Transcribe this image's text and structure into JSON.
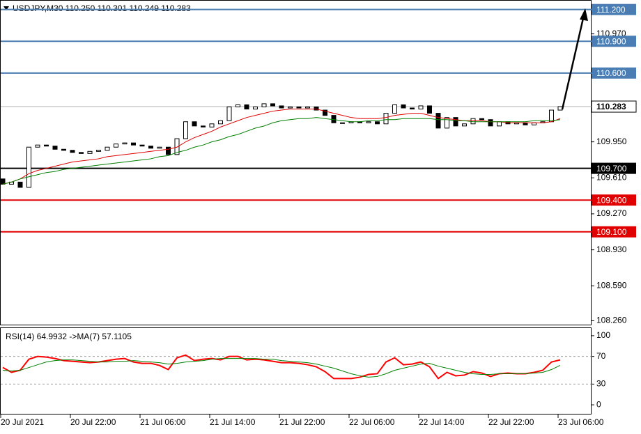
{
  "chart_data": [
    {
      "type": "candlestick",
      "title": "USDJPY,M30  110.250 110.301 110.249 110.283",
      "categories": [
        "20 Jul 2021",
        null,
        null,
        null,
        null,
        null,
        null,
        null,
        "20 Jul 22:00",
        null,
        null,
        null,
        null,
        null,
        null,
        null,
        "21 Jul 06:00",
        null,
        null,
        null,
        null,
        null,
        null,
        null,
        "21 Jul 14:00",
        null,
        null,
        null,
        null,
        null,
        null,
        null,
        "21 Jul 22:00",
        null,
        null,
        null,
        null,
        null,
        null,
        null,
        "22 Jul 06:00",
        null,
        null,
        null,
        null,
        null,
        null,
        null,
        "22 Jul 14:00",
        null,
        null,
        null,
        null,
        null,
        null,
        null,
        "22 Jul 22:00",
        null,
        null,
        null,
        null,
        null,
        null,
        null,
        "23 Jul 06:00"
      ],
      "open": [
        109.6,
        109.55,
        109.57,
        109.52,
        109.9,
        109.92,
        109.91,
        109.88,
        109.87,
        109.85,
        109.84,
        109.86,
        109.87,
        109.9,
        109.93,
        109.94,
        109.92,
        109.91,
        109.89,
        109.9,
        109.83,
        109.98,
        110.14,
        110.1,
        110.09,
        110.12,
        110.15,
        110.28,
        110.3,
        110.26,
        110.28,
        110.31,
        110.29,
        110.27,
        110.28,
        110.27,
        110.28,
        110.25,
        110.2,
        110.13,
        110.13,
        110.14,
        110.13,
        110.14,
        110.12,
        110.22,
        110.3,
        110.27,
        110.26,
        110.29,
        110.22,
        110.08,
        110.18,
        110.1,
        110.12,
        110.17,
        110.16,
        110.1,
        110.14,
        110.12,
        110.13,
        110.11,
        110.13,
        110.14,
        110.25
      ],
      "close": [
        109.55,
        109.57,
        109.52,
        109.9,
        109.92,
        109.91,
        109.88,
        109.87,
        109.85,
        109.84,
        109.86,
        109.87,
        109.9,
        109.93,
        109.94,
        109.92,
        109.91,
        109.89,
        109.9,
        109.83,
        109.98,
        110.14,
        110.1,
        110.09,
        110.12,
        110.15,
        110.28,
        110.3,
        110.26,
        110.28,
        110.31,
        110.29,
        110.27,
        110.28,
        110.27,
        110.28,
        110.25,
        110.2,
        110.13,
        110.13,
        110.14,
        110.13,
        110.14,
        110.12,
        110.22,
        110.3,
        110.27,
        110.26,
        110.29,
        110.22,
        110.08,
        110.18,
        110.1,
        110.12,
        110.17,
        110.16,
        110.1,
        110.14,
        110.12,
        110.13,
        110.11,
        110.13,
        110.14,
        110.25,
        110.283
      ],
      "series": [
        {
          "color": "#e00000",
          "values": [
            109.55,
            109.57,
            109.6,
            109.65,
            109.68,
            109.7,
            109.72,
            109.74,
            109.76,
            109.77,
            109.78,
            109.79,
            109.81,
            109.82,
            109.83,
            109.84,
            109.85,
            109.86,
            109.87,
            109.88,
            109.9,
            109.95,
            109.99,
            110.02,
            110.05,
            110.09,
            110.12,
            110.15,
            110.18,
            110.2,
            110.22,
            110.24,
            110.25,
            110.26,
            110.26,
            110.26,
            110.26,
            110.24,
            110.22,
            110.2,
            110.18,
            110.17,
            110.17,
            110.17,
            110.18,
            110.2,
            110.21,
            110.22,
            110.22,
            110.2,
            110.18,
            110.17,
            110.16,
            110.15,
            110.15,
            110.15,
            110.14,
            110.14,
            110.13,
            110.13,
            110.13,
            110.13,
            110.13,
            110.14,
            110.17
          ]
        },
        {
          "color": "#008000",
          "values": [
            109.55,
            109.57,
            109.6,
            109.62,
            109.64,
            109.66,
            109.67,
            109.69,
            109.7,
            109.71,
            109.72,
            109.73,
            109.74,
            109.75,
            109.76,
            109.77,
            109.78,
            109.79,
            109.81,
            109.82,
            109.85,
            109.87,
            109.9,
            109.92,
            109.95,
            109.97,
            110.0,
            110.02,
            110.05,
            110.08,
            110.1,
            110.13,
            110.15,
            110.16,
            110.17,
            110.17,
            110.18,
            110.17,
            110.16,
            110.15,
            110.14,
            110.14,
            110.15,
            110.15,
            110.16,
            110.16,
            110.17,
            110.17,
            110.17,
            110.17,
            110.16,
            110.16,
            110.15,
            110.15,
            110.14,
            110.14,
            110.14,
            110.14,
            110.14,
            110.14,
            110.14,
            110.15,
            110.15,
            110.15,
            110.16
          ]
        }
      ],
      "ylim": [
        108.23,
        111.29
      ],
      "yticks": [
        {
          "value": 110.97,
          "label": "110.970"
        },
        {
          "value": 109.95,
          "label": "109.950"
        },
        {
          "value": 109.61,
          "label": "109.610"
        },
        {
          "value": 109.27,
          "label": "109.270"
        },
        {
          "value": 108.93,
          "label": "108.930"
        },
        {
          "value": 108.59,
          "label": "108.590"
        },
        {
          "value": 108.26,
          "label": "108.260"
        }
      ],
      "levels": [
        {
          "value": 111.2,
          "label": "111.200",
          "color": "#4a7db3"
        },
        {
          "value": 110.9,
          "label": "110.900",
          "color": "#4a7db3"
        },
        {
          "value": 110.6,
          "label": "110.600",
          "color": "#4a7db3"
        },
        {
          "value": 109.7,
          "label": "109.700",
          "color": "#000000"
        },
        {
          "value": 109.4,
          "label": "109.400",
          "color": "#e00000"
        },
        {
          "value": 109.1,
          "label": "109.100",
          "color": "#e00000"
        }
      ],
      "current_price": 110.283
    },
    {
      "type": "line",
      "title": "RSI(14) 64.9932  ->MA(7) 57.1105",
      "series": [
        {
          "color": "#ff0000",
          "values": [
            54,
            47,
            50,
            66,
            70,
            69,
            67,
            64,
            63,
            62,
            61,
            62,
            64,
            66,
            67,
            62,
            60,
            60,
            57,
            51,
            68,
            72,
            64,
            66,
            67,
            65,
            70,
            70,
            65,
            66,
            65,
            63,
            61,
            61,
            60,
            58,
            55,
            48,
            38,
            38,
            38,
            40,
            44,
            45,
            62,
            68,
            58,
            59,
            62,
            55,
            38,
            47,
            42,
            43,
            48,
            46,
            41,
            45,
            46,
            45,
            45,
            47,
            50,
            62,
            64.9932
          ]
        },
        {
          "color": "#008000",
          "values": [
            50,
            49,
            50,
            54,
            58,
            62,
            64,
            65,
            65,
            64,
            63,
            62,
            62,
            63,
            63,
            64,
            63,
            62,
            61,
            59,
            60,
            62,
            63,
            64,
            66,
            67,
            67,
            67,
            67,
            67,
            66,
            66,
            64,
            63,
            62,
            61,
            59,
            56,
            53,
            49,
            45,
            42,
            40,
            41,
            45,
            50,
            53,
            56,
            59,
            60,
            56,
            53,
            50,
            47,
            45,
            44,
            44,
            45,
            45,
            45,
            45,
            46,
            47,
            51,
            57.1105
          ]
        }
      ],
      "ylim": [
        -14,
        112
      ],
      "yticks": [
        100,
        70,
        30,
        0
      ],
      "levels": [
        70,
        30
      ]
    }
  ]
}
